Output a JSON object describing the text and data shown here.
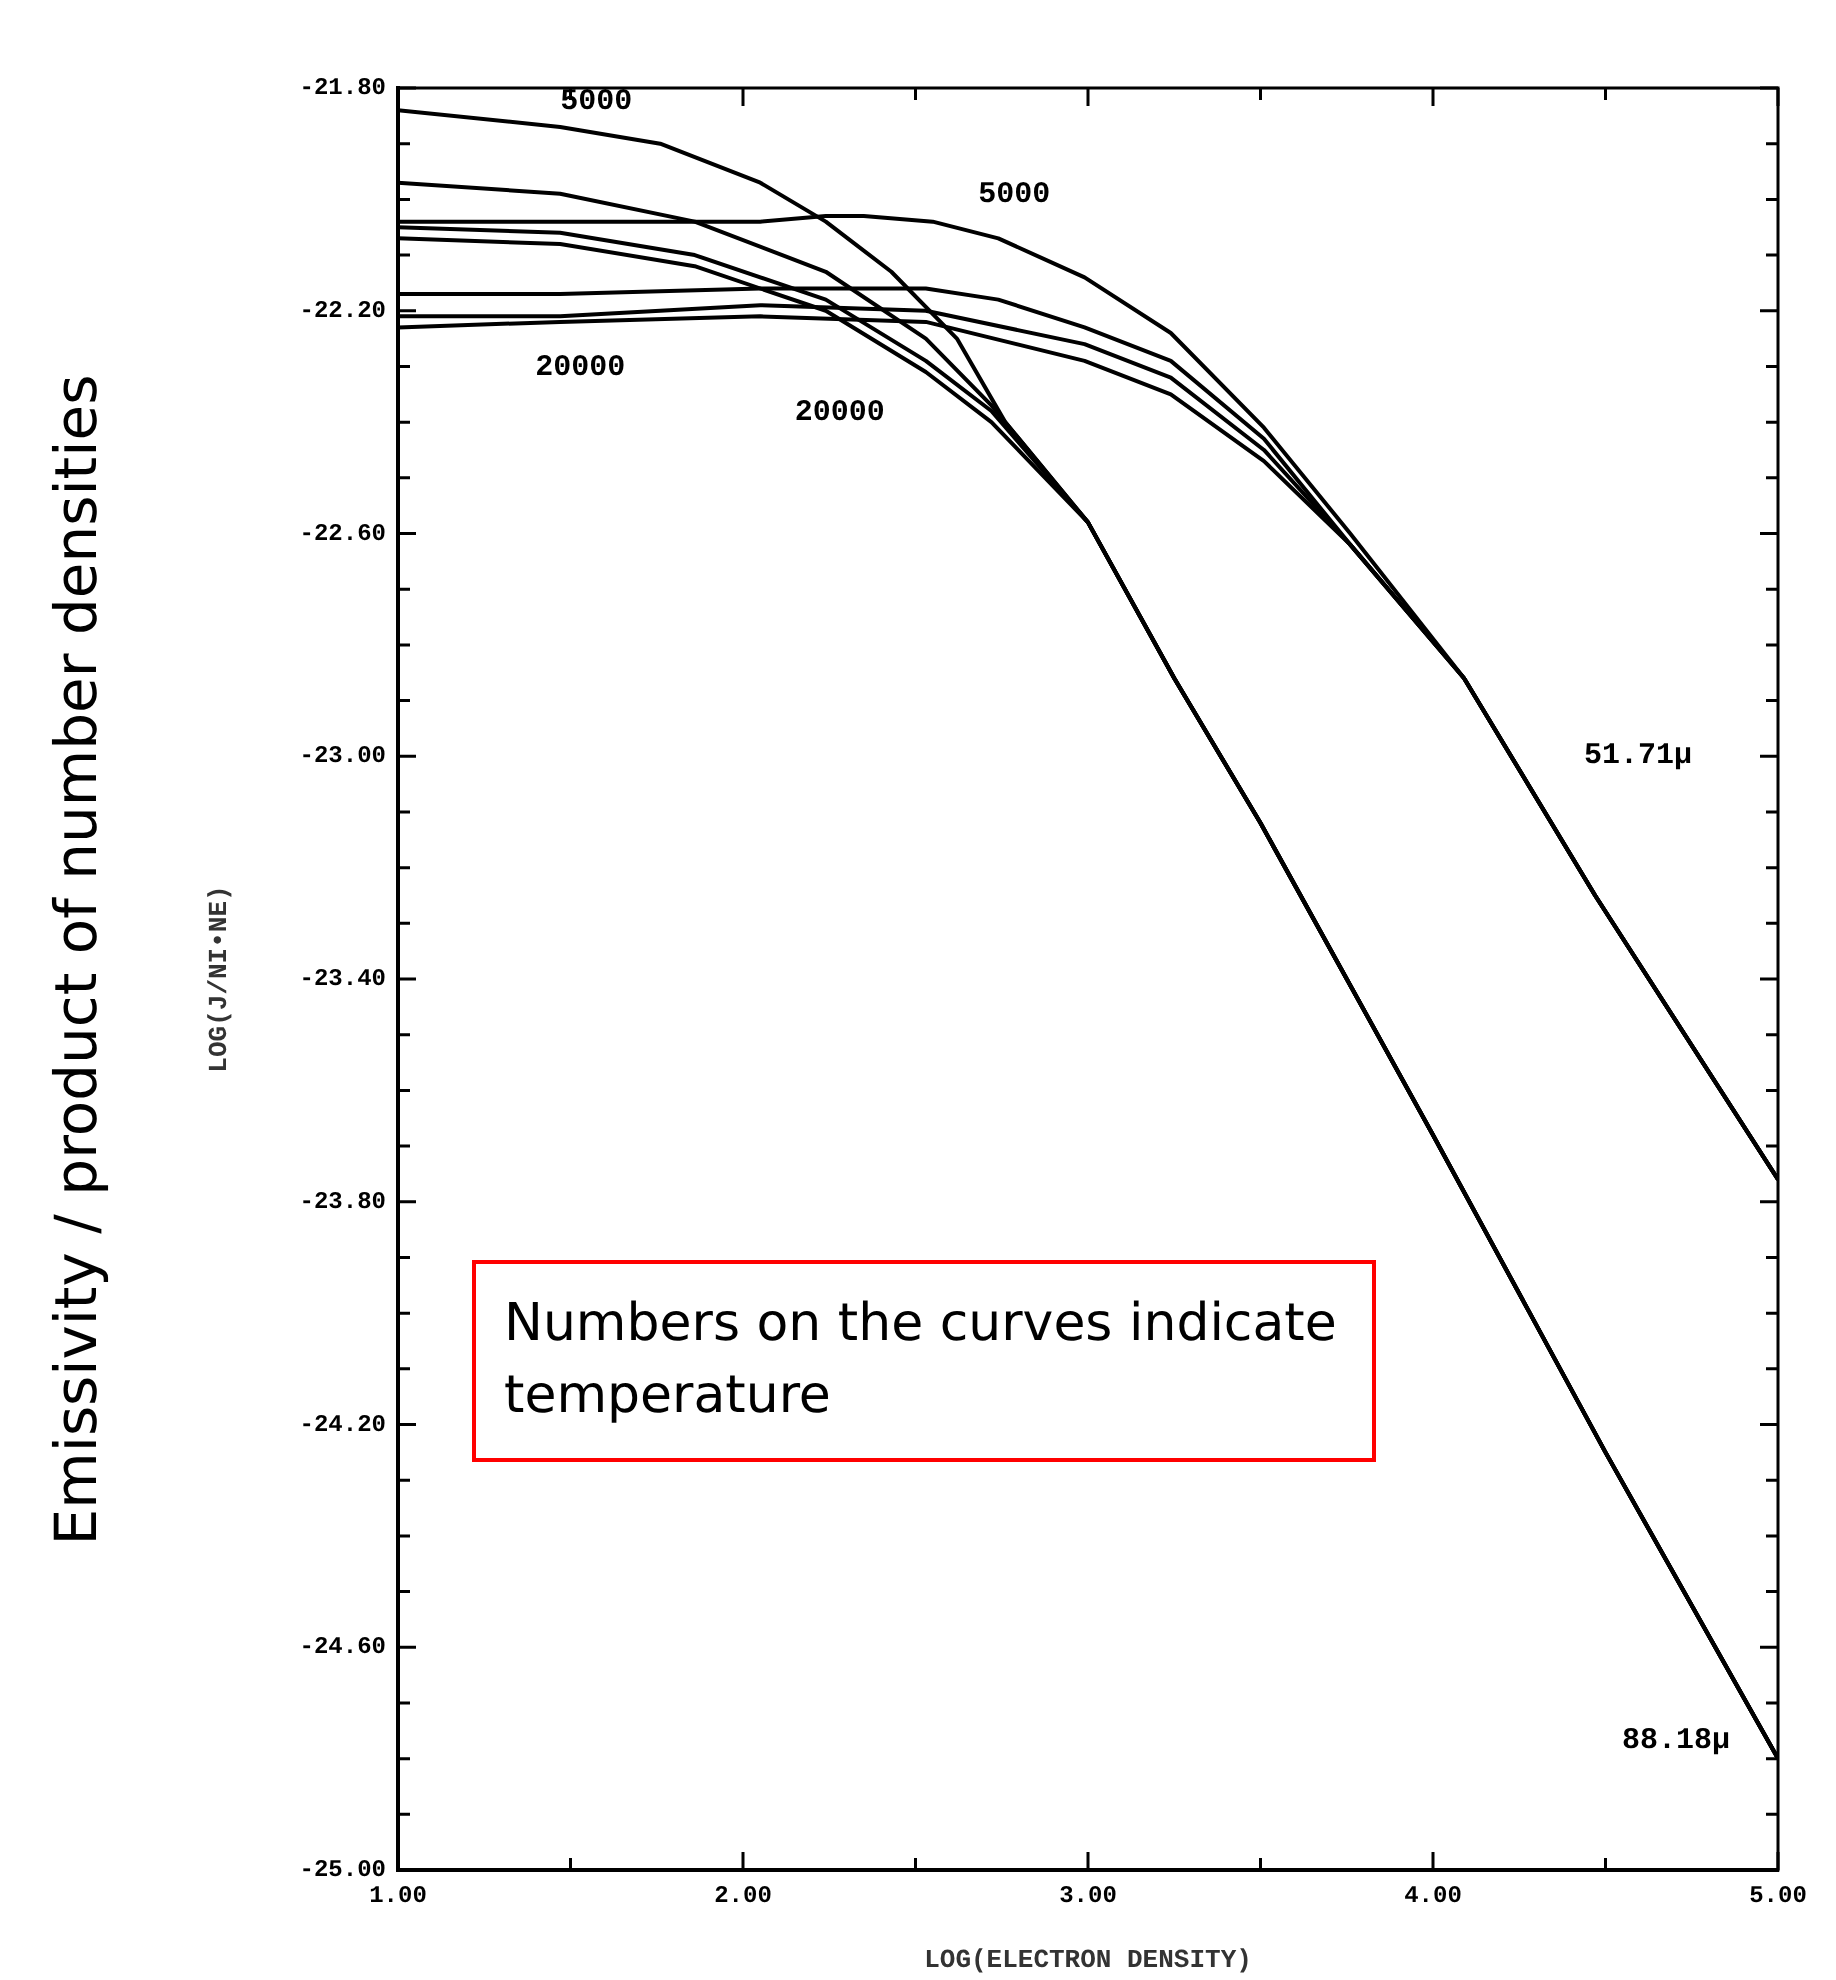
{
  "chart_data": {
    "type": "line",
    "xlabel": "LOG(ELECTRON DENSITY)",
    "ylabel": "LOG(J/NI•NE)",
    "xlim": [
      1,
      5
    ],
    "ylim": [
      -25,
      -21.8
    ],
    "xticks": [
      {
        "value": 1,
        "label": "1.00"
      },
      {
        "value": 1.5,
        "label": null
      },
      {
        "value": 2,
        "label": "2.00"
      },
      {
        "value": 2.5,
        "label": null
      },
      {
        "value": 3,
        "label": "3.00"
      },
      {
        "value": 3.5,
        "label": null
      },
      {
        "value": 4,
        "label": "4.00"
      },
      {
        "value": 4.5,
        "label": null
      },
      {
        "value": 5,
        "label": "5.00"
      }
    ],
    "yticks": [
      {
        "value": -21.8,
        "label": "-21.80"
      },
      {
        "value": -21.9,
        "label": null
      },
      {
        "value": -22.0,
        "label": null
      },
      {
        "value": -22.1,
        "label": null
      },
      {
        "value": -22.2,
        "label": "-22.20"
      },
      {
        "value": -22.3,
        "label": null
      },
      {
        "value": -22.4,
        "label": null
      },
      {
        "value": -22.5,
        "label": null
      },
      {
        "value": -22.6,
        "label": "-22.60"
      },
      {
        "value": -22.7,
        "label": null
      },
      {
        "value": -22.8,
        "label": null
      },
      {
        "value": -22.9,
        "label": null
      },
      {
        "value": -23.0,
        "label": "-23.00"
      },
      {
        "value": -23.1,
        "label": null
      },
      {
        "value": -23.2,
        "label": null
      },
      {
        "value": -23.3,
        "label": null
      },
      {
        "value": -23.4,
        "label": "-23.40"
      },
      {
        "value": -23.5,
        "label": null
      },
      {
        "value": -23.6,
        "label": null
      },
      {
        "value": -23.7,
        "label": null
      },
      {
        "value": -23.8,
        "label": "-23.80"
      },
      {
        "value": -23.9,
        "label": null
      },
      {
        "value": -24.0,
        "label": null
      },
      {
        "value": -24.1,
        "label": null
      },
      {
        "value": -24.2,
        "label": "-24.20"
      },
      {
        "value": -24.3,
        "label": null
      },
      {
        "value": -24.4,
        "label": null
      },
      {
        "value": -24.5,
        "label": null
      },
      {
        "value": -24.6,
        "label": "-24.60"
      },
      {
        "value": -24.7,
        "label": null
      },
      {
        "value": -24.8,
        "label": null
      },
      {
        "value": -24.9,
        "label": null
      },
      {
        "value": -25.0,
        "label": "-25.00"
      }
    ],
    "grid": false,
    "legend": false,
    "marker": "none",
    "line_style": "solid",
    "series": [
      {
        "color": "#000000",
        "x": [
          1.0,
          1.47,
          1.76,
          2.05,
          2.24,
          2.43,
          2.62,
          2.76,
          3.0,
          3.25,
          3.5,
          4.0,
          4.5,
          5.0
        ],
        "values": [
          -21.84,
          -21.87,
          -21.9,
          -21.97,
          -22.04,
          -22.13,
          -22.25,
          -22.4,
          -22.58,
          -22.86,
          -23.12,
          -23.68,
          -24.25,
          -24.8
        ]
      },
      {
        "color": "#000000",
        "x": [
          1.0,
          1.47,
          1.86,
          2.24,
          2.53,
          2.72,
          3.0,
          3.25,
          3.5,
          4.0,
          4.5,
          5.0
        ],
        "values": [
          -21.97,
          -21.99,
          -22.04,
          -22.13,
          -22.25,
          -22.37,
          -22.58,
          -22.86,
          -23.12,
          -23.68,
          -24.25,
          -24.8
        ]
      },
      {
        "color": "#000000",
        "x": [
          1.0,
          1.47,
          1.86,
          2.24,
          2.53,
          2.72,
          3.0,
          3.25,
          3.5,
          4.0,
          4.5,
          5.0
        ],
        "values": [
          -22.05,
          -22.06,
          -22.1,
          -22.18,
          -22.29,
          -22.38,
          -22.58,
          -22.86,
          -23.12,
          -23.68,
          -24.25,
          -24.8
        ]
      },
      {
        "color": "#000000",
        "x": [
          1.0,
          1.47,
          1.86,
          2.24,
          2.53,
          2.72,
          3.0,
          3.25,
          3.5,
          4.0,
          4.5,
          5.0
        ],
        "values": [
          -22.07,
          -22.08,
          -22.12,
          -22.2,
          -22.31,
          -22.4,
          -22.58,
          -22.86,
          -23.12,
          -23.68,
          -24.25,
          -24.8
        ]
      },
      {
        "color": "#000000",
        "x": [
          1.0,
          1.47,
          2.05,
          2.24,
          2.35,
          2.55,
          2.74,
          2.99,
          3.24,
          3.51,
          3.76,
          4.09,
          4.47,
          5.0
        ],
        "values": [
          -22.04,
          -22.04,
          -22.04,
          -22.03,
          -22.03,
          -22.04,
          -22.07,
          -22.14,
          -22.24,
          -22.41,
          -22.6,
          -22.86,
          -23.25,
          -23.76
        ]
      },
      {
        "color": "#000000",
        "x": [
          1.0,
          1.47,
          2.05,
          2.53,
          2.74,
          2.99,
          3.24,
          3.51,
          3.76,
          4.09,
          4.47,
          5.0
        ],
        "values": [
          -22.17,
          -22.17,
          -22.16,
          -22.16,
          -22.18,
          -22.23,
          -22.29,
          -22.43,
          -22.62,
          -22.86,
          -23.25,
          -23.76
        ]
      },
      {
        "color": "#000000",
        "x": [
          1.0,
          1.47,
          2.05,
          2.53,
          2.99,
          3.24,
          3.51,
          3.76,
          4.09,
          4.47,
          5.0
        ],
        "values": [
          -22.21,
          -22.21,
          -22.19,
          -22.2,
          -22.26,
          -22.32,
          -22.45,
          -22.62,
          -22.86,
          -23.25,
          -23.76
        ]
      },
      {
        "color": "#000000",
        "x": [
          1.0,
          1.47,
          2.05,
          2.53,
          2.99,
          3.24,
          3.51,
          3.76,
          4.09,
          4.47,
          5.0
        ],
        "values": [
          -22.23,
          -22.22,
          -22.21,
          -22.22,
          -22.29,
          -22.35,
          -22.47,
          -22.62,
          -22.86,
          -23.25,
          -23.76
        ]
      }
    ],
    "annotations": [
      "Emissivity / product of  number densities",
      "Numbers on the curves indicate temperature",
      {
        "text": "5000",
        "x": 1.47,
        "y": -21.87
      },
      {
        "text": "5000",
        "x": 2.74,
        "y": -22.07
      },
      {
        "text": "20000",
        "x": 1.47,
        "y": -22.22
      },
      {
        "text": "20000",
        "x": 2.53,
        "y": -22.31
      },
      {
        "text": "51.71μ",
        "x": 4.2,
        "y": -22.97
      },
      {
        "text": "88.18μ",
        "x": 5.0,
        "y": -24.8
      }
    ]
  }
}
